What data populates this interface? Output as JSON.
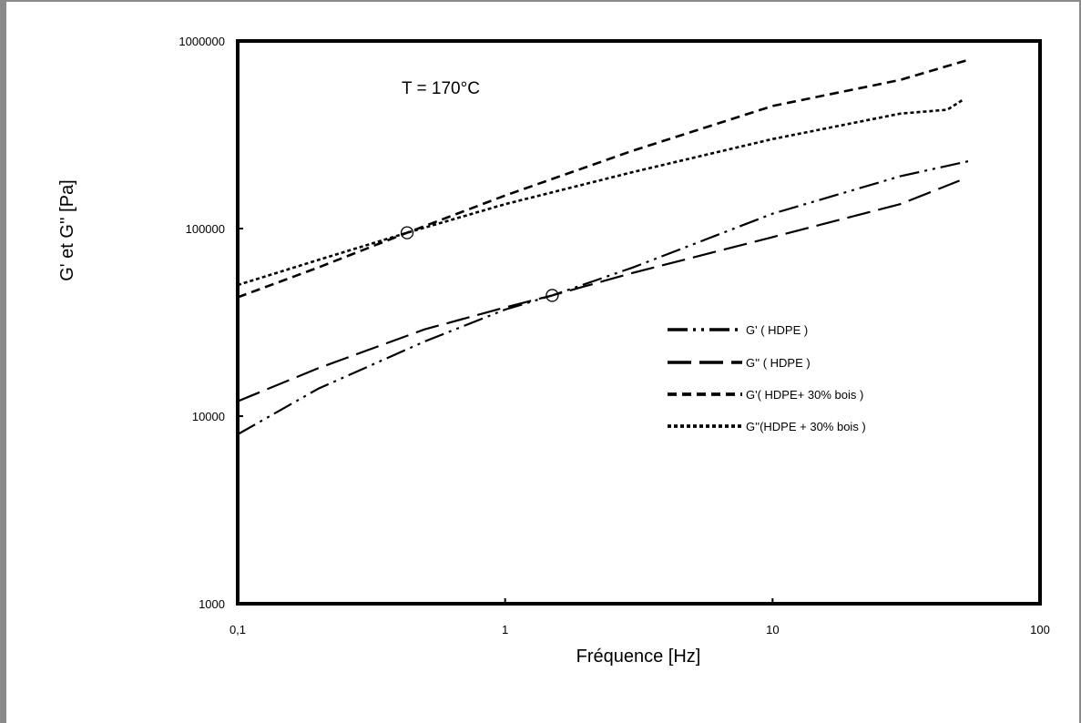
{
  "chart_data": {
    "type": "line",
    "title": "",
    "annotation": "T = 170°C",
    "xlabel": "Fréquence  [Hz]",
    "ylabel": "G' et G'' [Pa]",
    "xscale": "log",
    "yscale": "log",
    "xlim": [
      0.1,
      100
    ],
    "ylim": [
      1000,
      1000000
    ],
    "xticks": [
      0.1,
      1,
      10,
      100
    ],
    "xtick_labels": [
      "0,1",
      "1",
      "10",
      "100"
    ],
    "yticks": [
      1000,
      10000,
      100000,
      1000000
    ],
    "ytick_labels": [
      "1000",
      "10000",
      "100000",
      "1000000"
    ],
    "grid": false,
    "legend_position": "center-right",
    "series": [
      {
        "name": "G' ( HDPE )",
        "style": "dash-dot-dot",
        "x": [
          0.1,
          0.2,
          0.5,
          1,
          1.5,
          3,
          10,
          30,
          55
        ],
        "y": [
          8000,
          14000,
          25000,
          37000,
          44000,
          62000,
          120000,
          190000,
          230000
        ]
      },
      {
        "name": "G'' ( HDPE )",
        "style": "long-dash",
        "x": [
          0.1,
          0.2,
          0.5,
          1,
          1.5,
          3,
          10,
          30,
          50
        ],
        "y": [
          12000,
          18000,
          29000,
          38000,
          44000,
          58000,
          90000,
          135000,
          180000
        ]
      },
      {
        "name": "G'( HDPE+ 30% bois )",
        "style": "dash",
        "x": [
          0.1,
          0.2,
          0.43,
          1,
          3,
          10,
          30,
          55
        ],
        "y": [
          43000,
          62000,
          95000,
          150000,
          260000,
          450000,
          620000,
          800000
        ]
      },
      {
        "name": "G''(HDPE + 30% bois )",
        "style": "short-dash",
        "x": [
          0.1,
          0.2,
          0.43,
          1,
          3,
          10,
          30,
          45,
          52
        ],
        "y": [
          50000,
          68000,
          95000,
          135000,
          200000,
          300000,
          410000,
          430000,
          490000
        ]
      }
    ],
    "markers": [
      {
        "shape": "open-circle",
        "x": 0.43,
        "y": 95000
      },
      {
        "shape": "open-circle",
        "x": 1.5,
        "y": 44000
      }
    ]
  }
}
